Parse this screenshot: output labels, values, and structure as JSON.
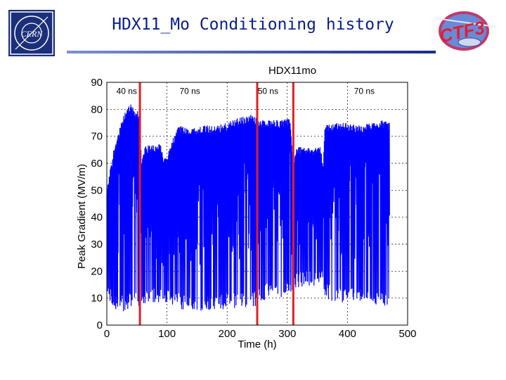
{
  "slide": {
    "title": "HDX11_Mo Conditioning history",
    "logo_left_text": "CERN",
    "logo_right_text": "CTF3"
  },
  "colors": {
    "title": "#0a1e8c",
    "series": "#0000ff",
    "marker_lines": "#e02020"
  },
  "chart_data": {
    "type": "line",
    "title": "HDX11mo",
    "xlabel": "Time (h)",
    "ylabel": "Peak Gradient (MV/m)",
    "xlim": [
      0,
      500
    ],
    "ylim": [
      0,
      90
    ],
    "xticks": [
      0,
      100,
      200,
      300,
      400,
      500
    ],
    "yticks": [
      0,
      10,
      20,
      30,
      40,
      50,
      60,
      70,
      80,
      90
    ],
    "grid": true,
    "vertical_lines": [
      55,
      250,
      310
    ],
    "annotations": [
      {
        "text": "40 ns",
        "x": 33,
        "y": 87
      },
      {
        "text": "70 ns",
        "x": 138,
        "y": 87
      },
      {
        "text": "50 ns",
        "x": 268,
        "y": 87
      },
      {
        "text": "70 ns",
        "x": 428,
        "y": 87
      }
    ],
    "series": [
      {
        "envelope": [
          [
            0,
            10,
            50
          ],
          [
            5,
            8,
            57
          ],
          [
            12,
            6,
            66
          ],
          [
            20,
            5,
            72
          ],
          [
            28,
            5,
            78
          ],
          [
            33,
            6,
            80
          ],
          [
            40,
            6,
            82
          ],
          [
            47,
            6,
            80
          ],
          [
            55,
            6,
            79
          ],
          [
            58,
            7,
            60
          ],
          [
            62,
            8,
            66
          ],
          [
            70,
            8,
            67
          ],
          [
            80,
            8,
            67
          ],
          [
            90,
            8,
            67
          ],
          [
            95,
            8,
            62
          ],
          [
            100,
            8,
            62
          ],
          [
            105,
            8,
            67
          ],
          [
            120,
            6,
            74
          ],
          [
            140,
            5,
            73
          ],
          [
            160,
            5,
            74
          ],
          [
            180,
            5,
            74
          ],
          [
            200,
            6,
            75
          ],
          [
            220,
            6,
            77
          ],
          [
            240,
            7,
            78
          ],
          [
            250,
            7,
            77
          ],
          [
            255,
            8,
            76
          ],
          [
            270,
            10,
            76
          ],
          [
            290,
            10,
            76
          ],
          [
            305,
            12,
            77
          ],
          [
            310,
            12,
            60
          ],
          [
            315,
            14,
            66
          ],
          [
            325,
            14,
            66
          ],
          [
            340,
            14,
            66
          ],
          [
            355,
            14,
            66
          ],
          [
            360,
            18,
            60
          ],
          [
            362,
            10,
            74
          ],
          [
            380,
            8,
            75
          ],
          [
            400,
            8,
            75
          ],
          [
            420,
            8,
            74
          ],
          [
            440,
            7,
            75
          ],
          [
            460,
            7,
            76
          ],
          [
            470,
            8,
            75
          ]
        ]
      }
    ]
  }
}
